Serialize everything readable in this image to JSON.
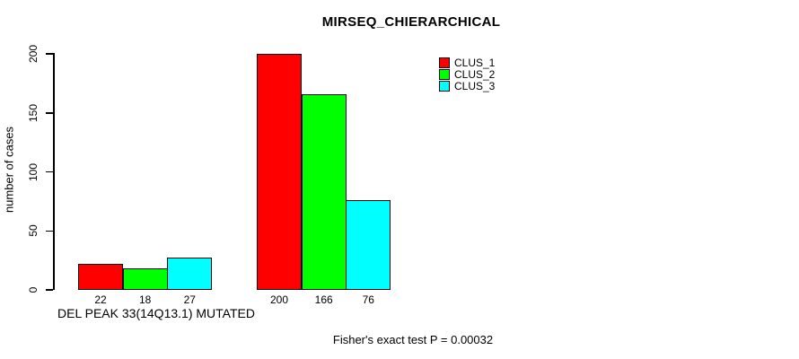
{
  "chart_data": {
    "type": "bar",
    "title": "MIRSEQ_CHIERARCHICAL",
    "ylabel": "number of cases",
    "xlabel": "",
    "ylim": [
      0,
      200
    ],
    "yticks": [
      0,
      50,
      100,
      150,
      200
    ],
    "grid": false,
    "legend_position": "top-right",
    "categories": [
      "DEL PEAK 33(14Q13.1) MUTATED",
      ""
    ],
    "series": [
      {
        "name": "CLUS_1",
        "color": "#ff0000",
        "values": [
          22,
          200
        ]
      },
      {
        "name": "CLUS_2",
        "color": "#00ff00",
        "values": [
          18,
          166
        ]
      },
      {
        "name": "CLUS_3",
        "color": "#00ffff",
        "values": [
          27,
          76
        ]
      }
    ],
    "bar_value_labels": true,
    "footnote": "Fisher's exact test P = 0.00032"
  },
  "colors": {
    "background": "#ffffff",
    "axis": "#000000",
    "text": "#000000"
  }
}
